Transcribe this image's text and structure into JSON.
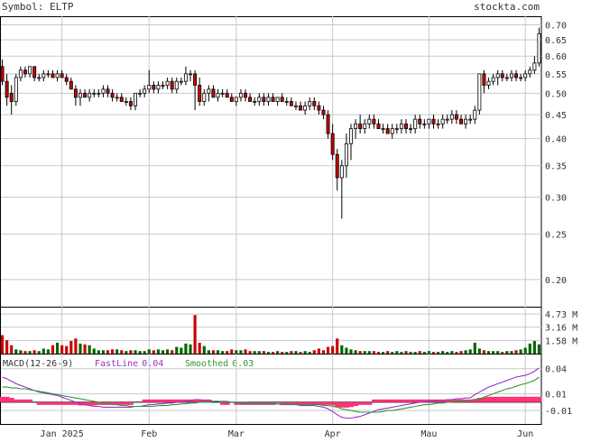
{
  "header": {
    "symbol_label": "Symbol: ELTP",
    "watermark": "stockta.com"
  },
  "colors": {
    "up": "#ffffff",
    "down": "#cc0000",
    "vol_up": "#006600",
    "vol_down": "#cc0000",
    "grid": "#c8c8c8",
    "fast": "#9933cc",
    "smoothed": "#339933",
    "hist": "#ff3377",
    "text": "#333333"
  },
  "chart_data": [
    {
      "type": "candlestick",
      "y_scale": "log",
      "ylim": [
        0.175,
        0.73
      ],
      "yticks": [
        0.2,
        0.25,
        0.3,
        0.35,
        0.4,
        0.45,
        0.5,
        0.55,
        0.6,
        0.65,
        0.7
      ],
      "ytick_labels": [
        "0.20",
        "0.25",
        "0.30",
        "0.35",
        "0.40",
        "0.45",
        "0.50",
        "0.55",
        "0.60",
        "0.65",
        "0.70"
      ],
      "x_labels": [
        "Jan 2025",
        "Feb",
        "Mar",
        "Apr",
        "Mau",
        "Jun"
      ],
      "x_label_index": [
        13,
        32,
        51,
        72,
        93,
        114
      ],
      "grid": true,
      "ohlc": [
        [
          0.57,
          0.59,
          0.52,
          0.53
        ],
        [
          0.53,
          0.55,
          0.47,
          0.49
        ],
        [
          0.5,
          0.52,
          0.45,
          0.48
        ],
        [
          0.48,
          0.55,
          0.47,
          0.54
        ],
        [
          0.54,
          0.57,
          0.53,
          0.56
        ],
        [
          0.56,
          0.57,
          0.54,
          0.55
        ],
        [
          0.55,
          0.57,
          0.54,
          0.57
        ],
        [
          0.57,
          0.57,
          0.53,
          0.54
        ],
        [
          0.54,
          0.55,
          0.53,
          0.54
        ],
        [
          0.54,
          0.56,
          0.53,
          0.55
        ],
        [
          0.55,
          0.56,
          0.54,
          0.55
        ],
        [
          0.55,
          0.56,
          0.54,
          0.54
        ],
        [
          0.54,
          0.56,
          0.53,
          0.55
        ],
        [
          0.55,
          0.56,
          0.54,
          0.54
        ],
        [
          0.54,
          0.55,
          0.52,
          0.53
        ],
        [
          0.53,
          0.54,
          0.51,
          0.51
        ],
        [
          0.51,
          0.52,
          0.47,
          0.49
        ],
        [
          0.49,
          0.51,
          0.47,
          0.5
        ],
        [
          0.5,
          0.51,
          0.49,
          0.49
        ],
        [
          0.49,
          0.51,
          0.48,
          0.5
        ],
        [
          0.5,
          0.51,
          0.49,
          0.5
        ],
        [
          0.5,
          0.51,
          0.49,
          0.5
        ],
        [
          0.5,
          0.52,
          0.49,
          0.51
        ],
        [
          0.51,
          0.52,
          0.49,
          0.5
        ],
        [
          0.5,
          0.51,
          0.48,
          0.49
        ],
        [
          0.49,
          0.5,
          0.48,
          0.49
        ],
        [
          0.49,
          0.5,
          0.48,
          0.48
        ],
        [
          0.48,
          0.49,
          0.47,
          0.48
        ],
        [
          0.48,
          0.49,
          0.46,
          0.47
        ],
        [
          0.47,
          0.5,
          0.46,
          0.5
        ],
        [
          0.5,
          0.51,
          0.49,
          0.5
        ],
        [
          0.5,
          0.52,
          0.49,
          0.51
        ],
        [
          0.51,
          0.56,
          0.5,
          0.52
        ],
        [
          0.52,
          0.53,
          0.5,
          0.51
        ],
        [
          0.51,
          0.53,
          0.5,
          0.52
        ],
        [
          0.52,
          0.53,
          0.51,
          0.52
        ],
        [
          0.52,
          0.54,
          0.51,
          0.53
        ],
        [
          0.53,
          0.54,
          0.5,
          0.51
        ],
        [
          0.51,
          0.54,
          0.5,
          0.53
        ],
        [
          0.53,
          0.54,
          0.52,
          0.53
        ],
        [
          0.53,
          0.57,
          0.52,
          0.55
        ],
        [
          0.55,
          0.56,
          0.53,
          0.55
        ],
        [
          0.55,
          0.56,
          0.46,
          0.52
        ],
        [
          0.52,
          0.54,
          0.47,
          0.48
        ],
        [
          0.48,
          0.51,
          0.47,
          0.5
        ],
        [
          0.5,
          0.52,
          0.48,
          0.51
        ],
        [
          0.51,
          0.52,
          0.49,
          0.49
        ],
        [
          0.49,
          0.51,
          0.48,
          0.5
        ],
        [
          0.5,
          0.51,
          0.49,
          0.5
        ],
        [
          0.5,
          0.51,
          0.49,
          0.49
        ],
        [
          0.49,
          0.5,
          0.48,
          0.48
        ],
        [
          0.48,
          0.49,
          0.47,
          0.49
        ],
        [
          0.49,
          0.51,
          0.48,
          0.5
        ],
        [
          0.5,
          0.51,
          0.48,
          0.49
        ],
        [
          0.49,
          0.5,
          0.48,
          0.48
        ],
        [
          0.48,
          0.49,
          0.47,
          0.48
        ],
        [
          0.48,
          0.5,
          0.47,
          0.49
        ],
        [
          0.49,
          0.5,
          0.47,
          0.48
        ],
        [
          0.48,
          0.5,
          0.47,
          0.49
        ],
        [
          0.49,
          0.5,
          0.48,
          0.48
        ],
        [
          0.48,
          0.49,
          0.47,
          0.49
        ],
        [
          0.49,
          0.5,
          0.48,
          0.48
        ],
        [
          0.48,
          0.49,
          0.47,
          0.48
        ],
        [
          0.48,
          0.49,
          0.47,
          0.47
        ],
        [
          0.47,
          0.48,
          0.46,
          0.47
        ],
        [
          0.47,
          0.48,
          0.46,
          0.46
        ],
        [
          0.46,
          0.48,
          0.45,
          0.47
        ],
        [
          0.47,
          0.49,
          0.46,
          0.48
        ],
        [
          0.48,
          0.49,
          0.46,
          0.47
        ],
        [
          0.47,
          0.48,
          0.45,
          0.46
        ],
        [
          0.46,
          0.47,
          0.44,
          0.45
        ],
        [
          0.45,
          0.46,
          0.4,
          0.41
        ],
        [
          0.41,
          0.43,
          0.36,
          0.37
        ],
        [
          0.37,
          0.38,
          0.31,
          0.33
        ],
        [
          0.33,
          0.36,
          0.27,
          0.35
        ],
        [
          0.35,
          0.41,
          0.33,
          0.39
        ],
        [
          0.39,
          0.43,
          0.36,
          0.42
        ],
        [
          0.42,
          0.44,
          0.4,
          0.43
        ],
        [
          0.43,
          0.45,
          0.41,
          0.42
        ],
        [
          0.42,
          0.44,
          0.41,
          0.43
        ],
        [
          0.43,
          0.45,
          0.42,
          0.44
        ],
        [
          0.44,
          0.45,
          0.42,
          0.43
        ],
        [
          0.43,
          0.44,
          0.42,
          0.42
        ],
        [
          0.42,
          0.43,
          0.41,
          0.42
        ],
        [
          0.42,
          0.43,
          0.41,
          0.41
        ],
        [
          0.41,
          0.43,
          0.4,
          0.42
        ],
        [
          0.42,
          0.43,
          0.41,
          0.42
        ],
        [
          0.42,
          0.44,
          0.41,
          0.43
        ],
        [
          0.43,
          0.44,
          0.41,
          0.42
        ],
        [
          0.42,
          0.43,
          0.41,
          0.42
        ],
        [
          0.42,
          0.45,
          0.41,
          0.44
        ],
        [
          0.44,
          0.45,
          0.42,
          0.43
        ],
        [
          0.43,
          0.44,
          0.42,
          0.43
        ],
        [
          0.43,
          0.44,
          0.42,
          0.44
        ],
        [
          0.44,
          0.45,
          0.42,
          0.43
        ],
        [
          0.43,
          0.44,
          0.42,
          0.43
        ],
        [
          0.43,
          0.45,
          0.42,
          0.44
        ],
        [
          0.44,
          0.45,
          0.43,
          0.44
        ],
        [
          0.44,
          0.46,
          0.43,
          0.45
        ],
        [
          0.45,
          0.46,
          0.43,
          0.44
        ],
        [
          0.44,
          0.45,
          0.43,
          0.43
        ],
        [
          0.43,
          0.45,
          0.42,
          0.44
        ],
        [
          0.44,
          0.45,
          0.43,
          0.44
        ],
        [
          0.44,
          0.47,
          0.43,
          0.46
        ],
        [
          0.46,
          0.55,
          0.45,
          0.55
        ],
        [
          0.55,
          0.56,
          0.5,
          0.52
        ],
        [
          0.52,
          0.54,
          0.51,
          0.53
        ],
        [
          0.53,
          0.55,
          0.52,
          0.54
        ],
        [
          0.54,
          0.56,
          0.52,
          0.55
        ],
        [
          0.55,
          0.56,
          0.53,
          0.54
        ],
        [
          0.54,
          0.55,
          0.53,
          0.54
        ],
        [
          0.54,
          0.56,
          0.53,
          0.55
        ],
        [
          0.55,
          0.56,
          0.53,
          0.54
        ],
        [
          0.54,
          0.55,
          0.53,
          0.54
        ],
        [
          0.54,
          0.56,
          0.53,
          0.55
        ],
        [
          0.55,
          0.57,
          0.54,
          0.56
        ],
        [
          0.56,
          0.6,
          0.55,
          0.58
        ],
        [
          0.58,
          0.69,
          0.57,
          0.67
        ]
      ]
    },
    {
      "type": "bar",
      "yticks": [
        1.58,
        3.16,
        4.73
      ],
      "ytick_labels": [
        "1.58 M",
        "3.16 M",
        "4.73 M"
      ],
      "ylim": [
        0,
        5.6
      ],
      "values": [
        2.2,
        1.6,
        1.0,
        0.5,
        0.4,
        0.3,
        0.3,
        0.4,
        0.3,
        0.6,
        0.5,
        1.0,
        1.3,
        1.0,
        0.9,
        1.5,
        1.8,
        1.2,
        1.1,
        1.0,
        0.6,
        0.4,
        0.4,
        0.4,
        0.5,
        0.5,
        0.4,
        0.3,
        0.4,
        0.4,
        0.3,
        0.3,
        0.5,
        0.4,
        0.5,
        0.4,
        0.5,
        0.4,
        0.8,
        0.7,
        1.2,
        1.1,
        4.6,
        1.3,
        0.9,
        0.4,
        0.4,
        0.4,
        0.3,
        0.3,
        0.5,
        0.4,
        0.4,
        0.5,
        0.3,
        0.3,
        0.3,
        0.3,
        0.2,
        0.2,
        0.3,
        0.2,
        0.2,
        0.3,
        0.3,
        0.2,
        0.3,
        0.2,
        0.4,
        0.6,
        0.4,
        0.8,
        0.9,
        1.8,
        1.0,
        0.7,
        0.5,
        0.4,
        0.3,
        0.3,
        0.3,
        0.3,
        0.2,
        0.2,
        0.3,
        0.2,
        0.3,
        0.2,
        0.3,
        0.2,
        0.2,
        0.3,
        0.2,
        0.3,
        0.2,
        0.2,
        0.3,
        0.2,
        0.3,
        0.2,
        0.3,
        0.4,
        0.5,
        1.3,
        0.6,
        0.4,
        0.3,
        0.3,
        0.3,
        0.2,
        0.3,
        0.3,
        0.4,
        0.5,
        0.7,
        1.2,
        1.5,
        1.1
      ]
    },
    {
      "type": "line",
      "title": "MACD(12-26-9)",
      "legend": [
        {
          "name": "FastLine",
          "value": "0.04"
        },
        {
          "name": "Smoothed",
          "value": "0.03"
        }
      ],
      "yticks": [
        0.04,
        0.01,
        -0.01
      ],
      "ytick_labels": [
        "0.04",
        "0.01",
        "-0.01"
      ],
      "ylim": [
        -0.026,
        0.058
      ],
      "series": [
        {
          "name": "FastLine",
          "values": [
            0.03,
            0.028,
            0.025,
            0.022,
            0.02,
            0.018,
            0.016,
            0.014,
            0.012,
            0.011,
            0.01,
            0.009,
            0.008,
            0.006,
            0.004,
            0.002,
            0.0,
            -0.002,
            -0.003,
            -0.004,
            -0.005,
            -0.005,
            -0.006,
            -0.006,
            -0.006,
            -0.006,
            -0.006,
            -0.006,
            -0.006,
            -0.005,
            -0.005,
            -0.004,
            -0.003,
            -0.003,
            -0.002,
            -0.002,
            -0.001,
            -0.001,
            0.0,
            0.0,
            0.001,
            0.002,
            0.003,
            0.003,
            0.002,
            0.002,
            0.001,
            0.001,
            0.0,
            0.0,
            0.0,
            -0.001,
            -0.001,
            -0.002,
            -0.002,
            -0.002,
            -0.002,
            -0.002,
            -0.002,
            -0.002,
            -0.002,
            -0.003,
            -0.003,
            -0.003,
            -0.003,
            -0.004,
            -0.004,
            -0.004,
            -0.004,
            -0.005,
            -0.006,
            -0.008,
            -0.011,
            -0.015,
            -0.018,
            -0.019,
            -0.019,
            -0.018,
            -0.017,
            -0.015,
            -0.013,
            -0.011,
            -0.009,
            -0.008,
            -0.007,
            -0.006,
            -0.005,
            -0.004,
            -0.003,
            -0.002,
            -0.001,
            0.0,
            0.0,
            0.001,
            0.001,
            0.002,
            0.002,
            0.003,
            0.003,
            0.004,
            0.004,
            0.005,
            0.005,
            0.009,
            0.012,
            0.015,
            0.018,
            0.02,
            0.022,
            0.024,
            0.026,
            0.028,
            0.03,
            0.031,
            0.032,
            0.034,
            0.037,
            0.041
          ]
        },
        {
          "name": "Smoothed",
          "values": [
            0.018,
            0.018,
            0.017,
            0.017,
            0.016,
            0.016,
            0.015,
            0.014,
            0.013,
            0.012,
            0.011,
            0.01,
            0.009,
            0.008,
            0.007,
            0.006,
            0.005,
            0.004,
            0.003,
            0.002,
            0.001,
            0.0,
            -0.001,
            -0.002,
            -0.003,
            -0.003,
            -0.004,
            -0.004,
            -0.005,
            -0.005,
            -0.005,
            -0.005,
            -0.005,
            -0.005,
            -0.004,
            -0.004,
            -0.004,
            -0.003,
            -0.003,
            -0.002,
            -0.002,
            -0.001,
            -0.001,
            0.0,
            0.0,
            0.0,
            0.001,
            0.001,
            0.001,
            0.001,
            0.0,
            0.0,
            0.0,
            0.0,
            -0.001,
            -0.001,
            -0.001,
            -0.001,
            -0.001,
            -0.001,
            -0.002,
            -0.002,
            -0.002,
            -0.002,
            -0.002,
            -0.003,
            -0.003,
            -0.003,
            -0.003,
            -0.003,
            -0.004,
            -0.004,
            -0.005,
            -0.006,
            -0.008,
            -0.009,
            -0.01,
            -0.011,
            -0.012,
            -0.012,
            -0.012,
            -0.012,
            -0.012,
            -0.011,
            -0.01,
            -0.01,
            -0.009,
            -0.008,
            -0.007,
            -0.006,
            -0.005,
            -0.004,
            -0.003,
            -0.003,
            -0.002,
            -0.001,
            -0.001,
            0.0,
            0.0,
            0.001,
            0.001,
            0.002,
            0.002,
            0.003,
            0.004,
            0.006,
            0.008,
            0.01,
            0.012,
            0.014,
            0.016,
            0.017,
            0.019,
            0.021,
            0.022,
            0.024,
            0.026,
            0.03
          ]
        }
      ],
      "histogram": [
        0.012,
        0.01,
        0.008,
        0.005,
        0.004,
        0.002,
        0.001,
        0.0,
        -0.001,
        -0.001,
        -0.001,
        -0.001,
        -0.001,
        -0.002,
        -0.003,
        -0.004,
        -0.005,
        -0.006,
        -0.006,
        -0.006,
        -0.006,
        -0.005,
        -0.005,
        -0.004,
        -0.003,
        -0.003,
        -0.002,
        -0.002,
        -0.001,
        0.0,
        0.0,
        0.001,
        0.002,
        0.002,
        0.002,
        0.002,
        0.003,
        0.002,
        0.003,
        0.002,
        0.003,
        0.003,
        0.004,
        0.003,
        0.002,
        0.002,
        0.0,
        0.0,
        -0.001,
        -0.001,
        0.0,
        -0.001,
        -0.001,
        -0.002,
        -0.001,
        -0.001,
        -0.001,
        -0.001,
        -0.001,
        -0.001,
        0.0,
        -0.001,
        -0.001,
        -0.001,
        -0.001,
        -0.001,
        -0.001,
        -0.001,
        -0.001,
        -0.002,
        -0.002,
        -0.004,
        -0.006,
        -0.009,
        -0.01,
        -0.01,
        -0.009,
        -0.007,
        -0.005,
        -0.003,
        -0.001,
        0.001,
        0.003,
        0.003,
        0.003,
        0.004,
        0.004,
        0.004,
        0.004,
        0.004,
        0.004,
        0.004,
        0.003,
        0.004,
        0.003,
        0.003,
        0.003,
        0.003,
        0.003,
        0.003,
        0.003,
        0.003,
        0.003,
        0.006,
        0.008,
        0.009,
        0.01,
        0.01,
        0.01,
        0.01,
        0.01,
        0.011,
        0.011,
        0.01,
        0.01,
        0.01,
        0.011,
        0.011
      ]
    }
  ]
}
